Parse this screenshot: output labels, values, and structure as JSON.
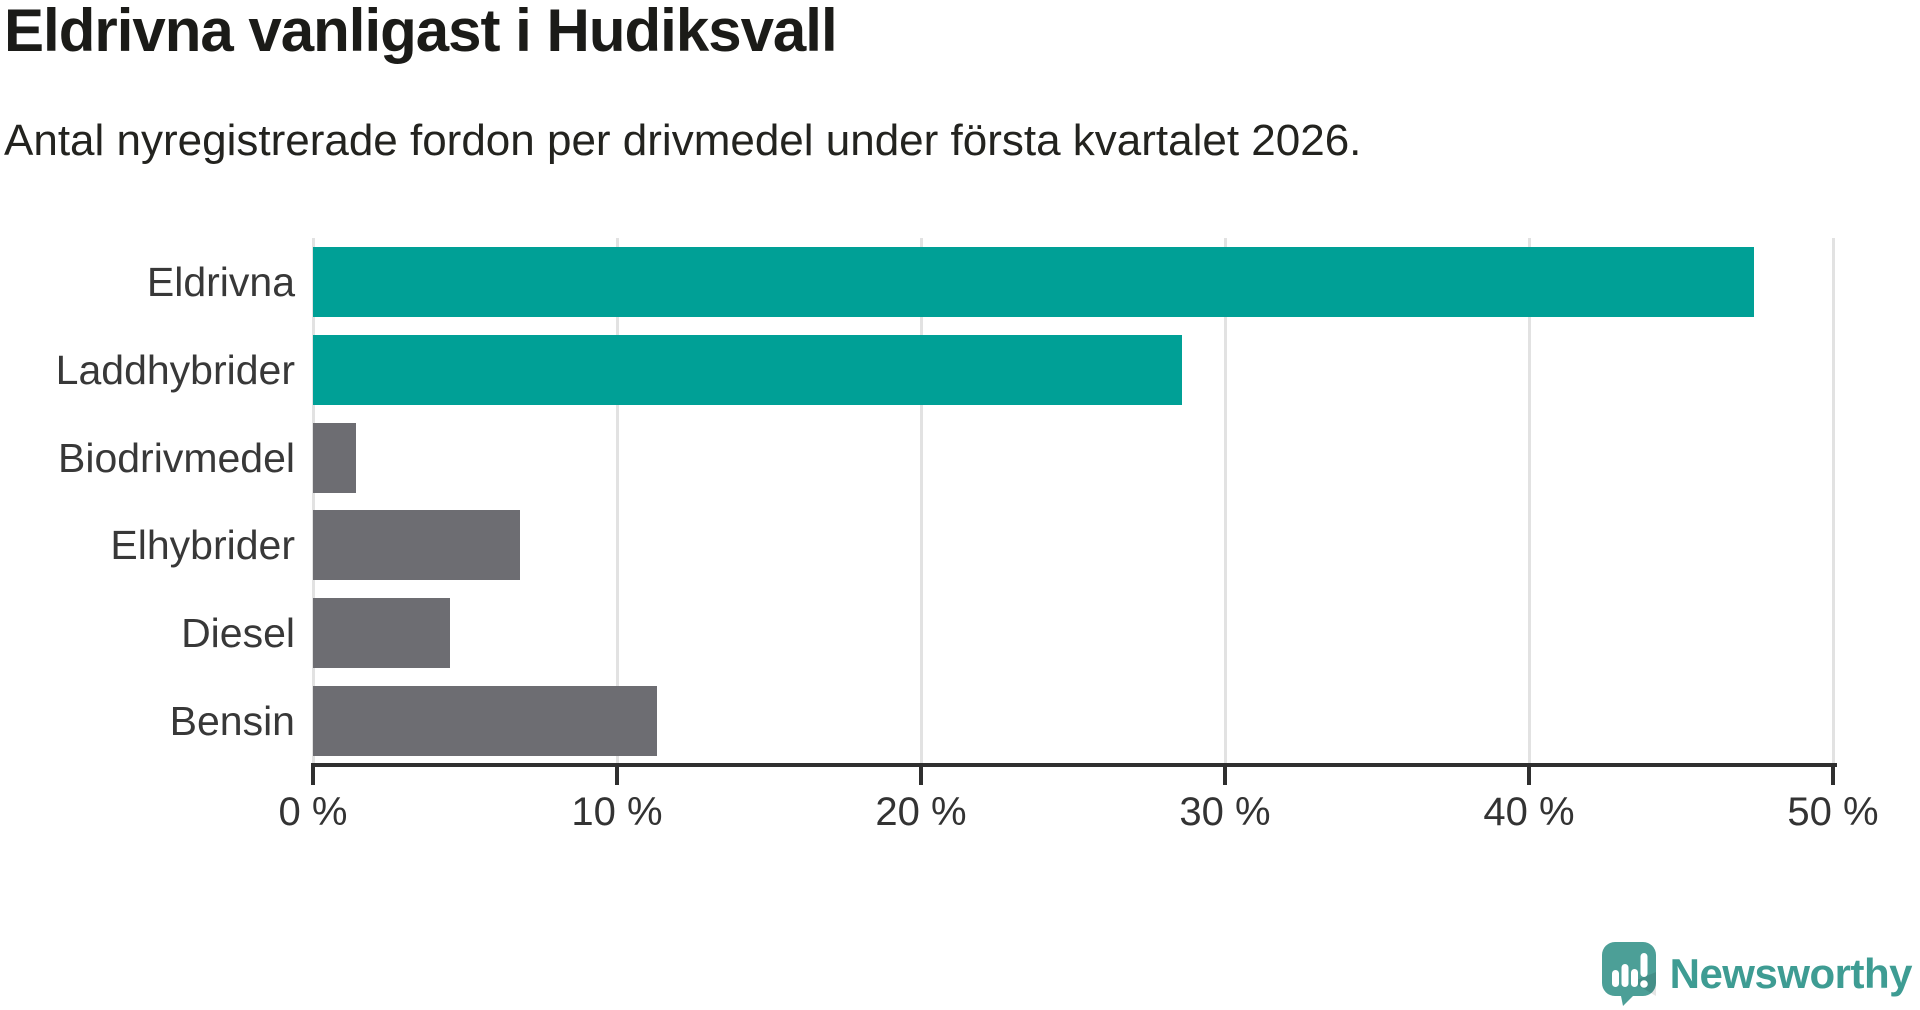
{
  "header": {
    "title": "Eldrivna vanligast i Hudiksvall",
    "subtitle": "Antal nyregistrerade fordon per drivmedel under första kvartalet 2026."
  },
  "chart_data": {
    "type": "bar",
    "orientation": "horizontal",
    "title": "Eldrivna vanligast i Hudiksvall",
    "subtitle": "Antal nyregistrerade fordon per drivmedel under första kvartalet 2026.",
    "categories": [
      "Eldrivna",
      "Laddhybrider",
      "Biodrivmedel",
      "Elhybrider",
      "Diesel",
      "Bensin"
    ],
    "values": [
      47.4,
      28.6,
      1.4,
      6.8,
      4.5,
      11.3
    ],
    "unit": "%",
    "bar_colors": [
      "#00a096",
      "#00a096",
      "#6d6d72",
      "#6d6d72",
      "#6d6d72",
      "#6d6d72"
    ],
    "highlight_color": "#00a096",
    "default_color": "#6d6d72",
    "xlabel": "",
    "ylabel": "",
    "xlim": [
      0,
      50
    ],
    "x_ticks": [
      0,
      10,
      20,
      30,
      40,
      50
    ],
    "x_tick_labels": [
      "0 %",
      "10 %",
      "20 %",
      "30 %",
      "40 %",
      "50 %"
    ],
    "grid": true,
    "gridline_color": "#e2e2e2",
    "axis_color": "#2f2f2f",
    "legend": false
  },
  "branding": {
    "logo_text": "Newsworthy",
    "logo_text_color": "#3e9c93",
    "logo_bubble_color": "#4c9f97"
  }
}
